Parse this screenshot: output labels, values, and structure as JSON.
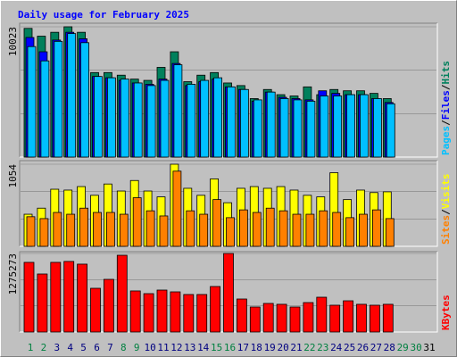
{
  "title": "Daily usage for February 2025",
  "legend_separator": "/",
  "chart_data": [
    {
      "type": "bar",
      "ylim": [
        0,
        10023
      ],
      "yticks": [
        10023
      ],
      "series": [
        {
          "name": "Hits",
          "color": "#00805c",
          "values": [
            9900,
            9300,
            9600,
            10023,
            9600,
            6500,
            6500,
            6300,
            6000,
            5900,
            6900,
            8100,
            5800,
            6300,
            6500,
            5700,
            5500,
            4500,
            5200,
            4800,
            4700,
            5400,
            4800,
            5200,
            5100,
            5100,
            4900,
            4500,
            null,
            null,
            null
          ]
        },
        {
          "name": "Files",
          "color": "#0000ff",
          "values": [
            9200,
            8100,
            9000,
            9600,
            9100,
            6200,
            6100,
            5900,
            5700,
            5600,
            6000,
            7200,
            5500,
            5800,
            6000,
            5400,
            5200,
            4300,
            5000,
            4600,
            4500,
            4400,
            5100,
            4900,
            4800,
            4800,
            4500,
            4200,
            null,
            null,
            null
          ]
        },
        {
          "name": "Pages",
          "color": "#00c0ff",
          "values": [
            8500,
            7400,
            8900,
            9500,
            8800,
            6200,
            6100,
            6000,
            5700,
            5500,
            5900,
            7100,
            5600,
            5900,
            6100,
            5400,
            5200,
            4400,
            5000,
            4500,
            4400,
            4300,
            4700,
            4700,
            4800,
            4800,
            4500,
            4100,
            null,
            null,
            null
          ]
        }
      ]
    },
    {
      "type": "bar",
      "ylim": [
        0,
        1054
      ],
      "yticks": [
        1054
      ],
      "series": [
        {
          "name": "Visits",
          "color": "#ffff00",
          "values": [
            412,
            490,
            733,
            722,
            767,
            655,
            800,
            710,
            845,
            710,
            635,
            1054,
            745,
            655,
            866,
            560,
            745,
            767,
            745,
            767,
            722,
            655,
            635,
            945,
            600,
            722,
            690,
            700,
            null,
            null,
            null
          ]
        },
        {
          "name": "Sites",
          "color": "#ff8000",
          "values": [
            380,
            356,
            435,
            412,
            490,
            435,
            435,
            412,
            624,
            456,
            390,
            965,
            456,
            412,
            600,
            368,
            468,
            435,
            490,
            456,
            412,
            412,
            456,
            435,
            368,
            412,
            468,
            356,
            null,
            null,
            null
          ]
        }
      ]
    },
    {
      "type": "bar",
      "ylim": [
        0,
        1275273
      ],
      "yticks": [
        1275273
      ],
      "categories": [
        "1",
        "2",
        "3",
        "4",
        "5",
        "6",
        "7",
        "8",
        "9",
        "10",
        "11",
        "12",
        "13",
        "14",
        "15",
        "16",
        "17",
        "18",
        "19",
        "20",
        "21",
        "22",
        "23",
        "24",
        "25",
        "26",
        "27",
        "28",
        "29",
        "30",
        "31"
      ],
      "category_colors": [
        "#008040",
        "#008040",
        "#000080",
        "#000080",
        "#000080",
        "#000080",
        "#000080",
        "#008040",
        "#008040",
        "#000080",
        "#000080",
        "#000080",
        "#000080",
        "#000080",
        "#008040",
        "#008040",
        "#000080",
        "#000080",
        "#000080",
        "#000080",
        "#000080",
        "#008040",
        "#008040",
        "#000080",
        "#000080",
        "#000080",
        "#000080",
        "#000080",
        "#008040",
        "#008040",
        "#000000"
      ],
      "series": [
        {
          "name": "KBytes",
          "color": "#ff0000",
          "values": [
            1131000,
            942000,
            1131000,
            1146000,
            1102000,
            710000,
            855000,
            1246000,
            667000,
            623000,
            681000,
            652000,
            609000,
            609000,
            739000,
            1275273,
            536000,
            406000,
            464000,
            450000,
            406000,
            478000,
            565000,
            435000,
            507000,
            450000,
            435000,
            450000,
            null,
            null,
            null
          ]
        }
      ]
    }
  ]
}
